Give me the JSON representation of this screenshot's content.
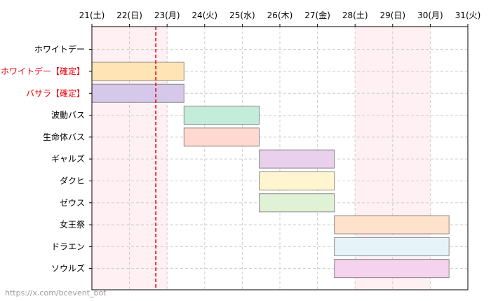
{
  "chart_data": {
    "type": "gantt",
    "x_ticks": [
      "21(土)",
      "22(日)",
      "23(月)",
      "24(火)",
      "25(水)",
      "26(木)",
      "27(金)",
      "28(土)",
      "29(日)",
      "30(月)",
      "31(火)"
    ],
    "xlim": [
      21,
      31
    ],
    "weekend_shading": [
      [
        21,
        23
      ],
      [
        28,
        30
      ]
    ],
    "current_time": 22.7,
    "grid": true,
    "tasks": [
      {
        "label": "ホワイトデー",
        "highlight": false,
        "start": null,
        "end": null,
        "color": null
      },
      {
        "label": "ホワイトデー【確定】",
        "highlight": true,
        "start": 21.0,
        "end": 23.45,
        "color": "#ffe4b5"
      },
      {
        "label": "バサラ【確定】",
        "highlight": true,
        "start": 21.0,
        "end": 23.45,
        "color": "#d6c8ea"
      },
      {
        "label": "波動バス",
        "highlight": false,
        "start": 23.45,
        "end": 25.45,
        "color": "#c3ecdb"
      },
      {
        "label": "生命体バス",
        "highlight": false,
        "start": 23.45,
        "end": 25.45,
        "color": "#ffd9d0"
      },
      {
        "label": "ギャルズ",
        "highlight": false,
        "start": 25.45,
        "end": 27.45,
        "color": "#e9d0ec"
      },
      {
        "label": "ダクヒ",
        "highlight": false,
        "start": 25.45,
        "end": 27.45,
        "color": "#fff6cf"
      },
      {
        "label": "ゼウス",
        "highlight": false,
        "start": 25.45,
        "end": 27.45,
        "color": "#e0f2d6"
      },
      {
        "label": "女王祭",
        "highlight": false,
        "start": 27.45,
        "end": 30.5,
        "color": "#ffe2cc"
      },
      {
        "label": "ドラエン",
        "highlight": false,
        "start": 27.45,
        "end": 30.5,
        "color": "#e6f4fa"
      },
      {
        "label": "ソウルズ",
        "highlight": false,
        "start": 27.45,
        "end": 30.5,
        "color": "#f5d2ee"
      }
    ]
  },
  "colors": {
    "highlight_label": "#e8000b",
    "current_line": "#e8000b",
    "weekend": "#fff0f3",
    "grid": "#cccccc",
    "bar_border": "#888888"
  },
  "watermark": "https://x.com/bcevent_bot"
}
